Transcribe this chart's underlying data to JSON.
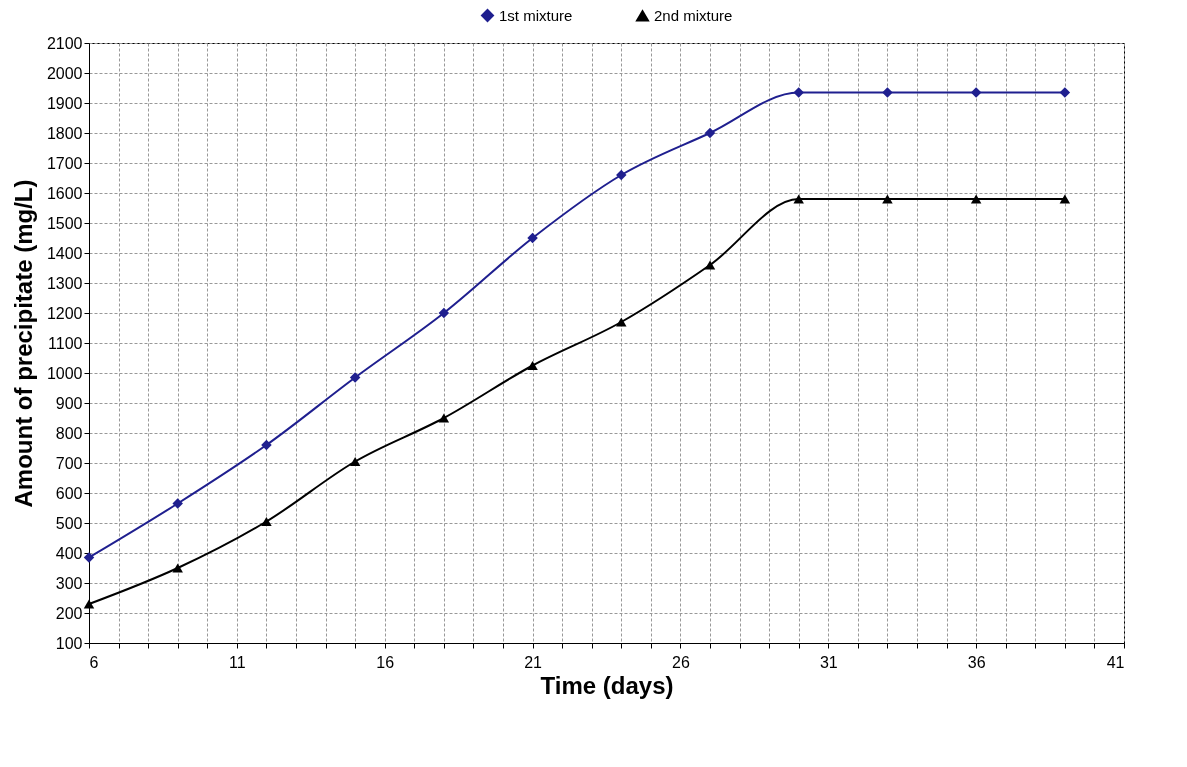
{
  "chart_data": {
    "type": "line",
    "xlabel": "Time (days)",
    "ylabel": "Amount of precipitate (mg/L)",
    "x": [
      6,
      9,
      12,
      15,
      18,
      21,
      24,
      27,
      30,
      33,
      36,
      39
    ],
    "series": [
      {
        "name": "1st mixture",
        "color": "#1f1f8f",
        "marker": "diamond",
        "values": [
          385,
          565,
          760,
          985,
          1200,
          1450,
          1660,
          1800,
          1935,
          1935,
          1935,
          1935
        ]
      },
      {
        "name": "2nd mixture",
        "color": "#000000",
        "marker": "triangle",
        "values": [
          230,
          350,
          505,
          705,
          850,
          1025,
          1170,
          1360,
          1580,
          1580,
          1580,
          1580
        ]
      }
    ],
    "xlim": [
      6,
      41
    ],
    "xticks": [
      6,
      {
        "value": 7,
        "label": null
      },
      {
        "value": 8,
        "label": null
      },
      {
        "value": 9,
        "label": null
      },
      {
        "value": 10,
        "label": null
      },
      11,
      {
        "value": 12,
        "label": null
      },
      {
        "value": 13,
        "label": null
      },
      {
        "value": 14,
        "label": null
      },
      {
        "value": 15,
        "label": null
      },
      16,
      {
        "value": 17,
        "label": null
      },
      {
        "value": 18,
        "label": null
      },
      {
        "value": 19,
        "label": null
      },
      {
        "value": 20,
        "label": null
      },
      21,
      {
        "value": 22,
        "label": null
      },
      {
        "value": 23,
        "label": null
      },
      {
        "value": 24,
        "label": null
      },
      {
        "value": 25,
        "label": null
      },
      26,
      {
        "value": 27,
        "label": null
      },
      {
        "value": 28,
        "label": null
      },
      {
        "value": 29,
        "label": null
      },
      {
        "value": 30,
        "label": null
      },
      31,
      {
        "value": 32,
        "label": null
      },
      {
        "value": 33,
        "label": null
      },
      {
        "value": 34,
        "label": null
      },
      {
        "value": 35,
        "label": null
      },
      36,
      {
        "value": 37,
        "label": null
      },
      {
        "value": 38,
        "label": null
      },
      {
        "value": 39,
        "label": null
      },
      {
        "value": 40,
        "label": null
      },
      41
    ],
    "ylim": [
      100,
      2100
    ],
    "yticks": [
      100,
      200,
      300,
      400,
      500,
      600,
      700,
      800,
      900,
      1000,
      1100,
      1200,
      1300,
      1400,
      1500,
      1600,
      1700,
      1800,
      1900,
      2000,
      2100
    ],
    "grid": true,
    "legend": "top",
    "line_style": "solid"
  }
}
